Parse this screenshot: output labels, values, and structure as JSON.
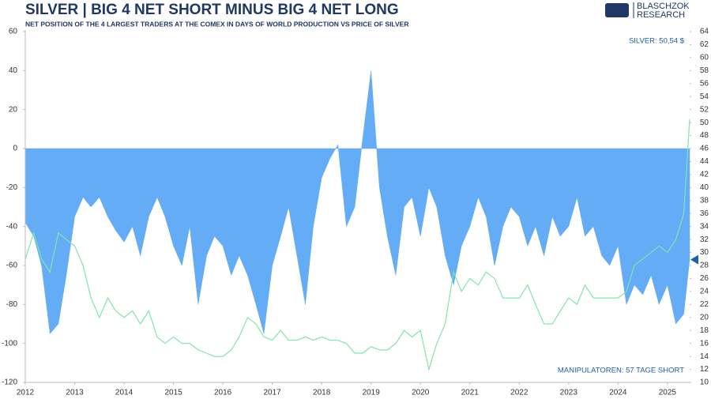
{
  "chart_data": {
    "type": "area_line",
    "title": "SILVER | BIG 4 NET SHORT MINUS BIG 4 NET LONG",
    "subtitle": "NET POSITION OF THE 4 LARGEST TRADERS AT THE COMEX IN DAYS OF WORLD PRODUCTION VS PRICE OF SILVER",
    "logo": [
      "BLASCHZOK",
      "RESEARCH"
    ],
    "annotations": [
      "SILVER: 50,54 $",
      "MANIPULATOREN: 57 TAGE SHORT"
    ],
    "x": [
      2012,
      2012.17,
      2012.33,
      2012.5,
      2012.67,
      2012.83,
      2013,
      2013.17,
      2013.33,
      2013.5,
      2013.67,
      2013.83,
      2014,
      2014.17,
      2014.33,
      2014.5,
      2014.67,
      2014.83,
      2015,
      2015.17,
      2015.33,
      2015.5,
      2015.67,
      2015.83,
      2016,
      2016.17,
      2016.33,
      2016.5,
      2016.67,
      2016.83,
      2017,
      2017.17,
      2017.33,
      2017.5,
      2017.67,
      2017.83,
      2018,
      2018.17,
      2018.33,
      2018.5,
      2018.67,
      2018.83,
      2019,
      2019.17,
      2019.33,
      2019.5,
      2019.67,
      2019.83,
      2020,
      2020.17,
      2020.33,
      2020.5,
      2020.67,
      2020.83,
      2021,
      2021.17,
      2021.33,
      2021.5,
      2021.67,
      2021.83,
      2022,
      2022.17,
      2022.33,
      2022.5,
      2022.67,
      2022.83,
      2023,
      2023.17,
      2023.33,
      2023.5,
      2023.67,
      2023.83,
      2024,
      2024.17,
      2024.33,
      2024.5,
      2024.67,
      2024.83,
      2025,
      2025.17,
      2025.33,
      2025.45
    ],
    "series": [
      {
        "name": "Big 4 net position",
        "color": "#64acf6",
        "axis": "y",
        "values": [
          -38,
          -45,
          -60,
          -95,
          -90,
          -65,
          -35,
          -25,
          -30,
          -25,
          -35,
          -42,
          -48,
          -40,
          -55,
          -35,
          -25,
          -35,
          -50,
          -60,
          -40,
          -80,
          -55,
          -45,
          -50,
          -65,
          -55,
          -65,
          -80,
          -95,
          -60,
          -45,
          -30,
          -55,
          -80,
          -40,
          -15,
          -5,
          2,
          -40,
          -30,
          5,
          40,
          -20,
          -45,
          -65,
          -30,
          -25,
          -45,
          -20,
          -30,
          -55,
          -70,
          -50,
          -40,
          -25,
          -35,
          -60,
          -40,
          -30,
          -35,
          -50,
          -40,
          -55,
          -35,
          -45,
          -40,
          -25,
          -45,
          -40,
          -55,
          -60,
          -50,
          -80,
          -70,
          -75,
          -65,
          -80,
          -70,
          -90,
          -85,
          -57
        ]
      },
      {
        "name": "Silver",
        "color": "#7fe6ad",
        "axis": "y2",
        "values": [
          29,
          33,
          29,
          27,
          33,
          32,
          31,
          28,
          23,
          20,
          23,
          21,
          20,
          21,
          19,
          21,
          17,
          16,
          17,
          16,
          16,
          15,
          14.5,
          14,
          14,
          15,
          17,
          20,
          19,
          17,
          16.5,
          18,
          16.5,
          16.5,
          17,
          16.5,
          17,
          16.5,
          16.5,
          16,
          14.5,
          14.5,
          15.5,
          15,
          15,
          16,
          18,
          17,
          18,
          12,
          16,
          19,
          27,
          24,
          26,
          25,
          27,
          26,
          23,
          23,
          23,
          25,
          22,
          19,
          19,
          21,
          23,
          22,
          25,
          23,
          23,
          23,
          23,
          24,
          28,
          29,
          30,
          31,
          30,
          32,
          36,
          50.54
        ]
      }
    ],
    "xlim": [
      2012,
      2025.45
    ],
    "xticks": [
      2012,
      2013,
      2014,
      2015,
      2016,
      2017,
      2018,
      2019,
      2020,
      2021,
      2022,
      2023,
      2024,
      2025
    ],
    "ylim": [
      -120,
      60
    ],
    "yticks": [
      -120,
      -100,
      -80,
      -60,
      -40,
      -20,
      0,
      20,
      40,
      60
    ],
    "y2lim": [
      10,
      64
    ],
    "y2ticks": [
      10,
      12,
      14,
      16,
      18,
      20,
      22,
      24,
      26,
      28,
      30,
      32,
      34,
      36,
      38,
      40,
      42,
      44,
      46,
      48,
      50,
      52,
      54,
      56,
      58,
      60,
      62,
      64
    ]
  }
}
